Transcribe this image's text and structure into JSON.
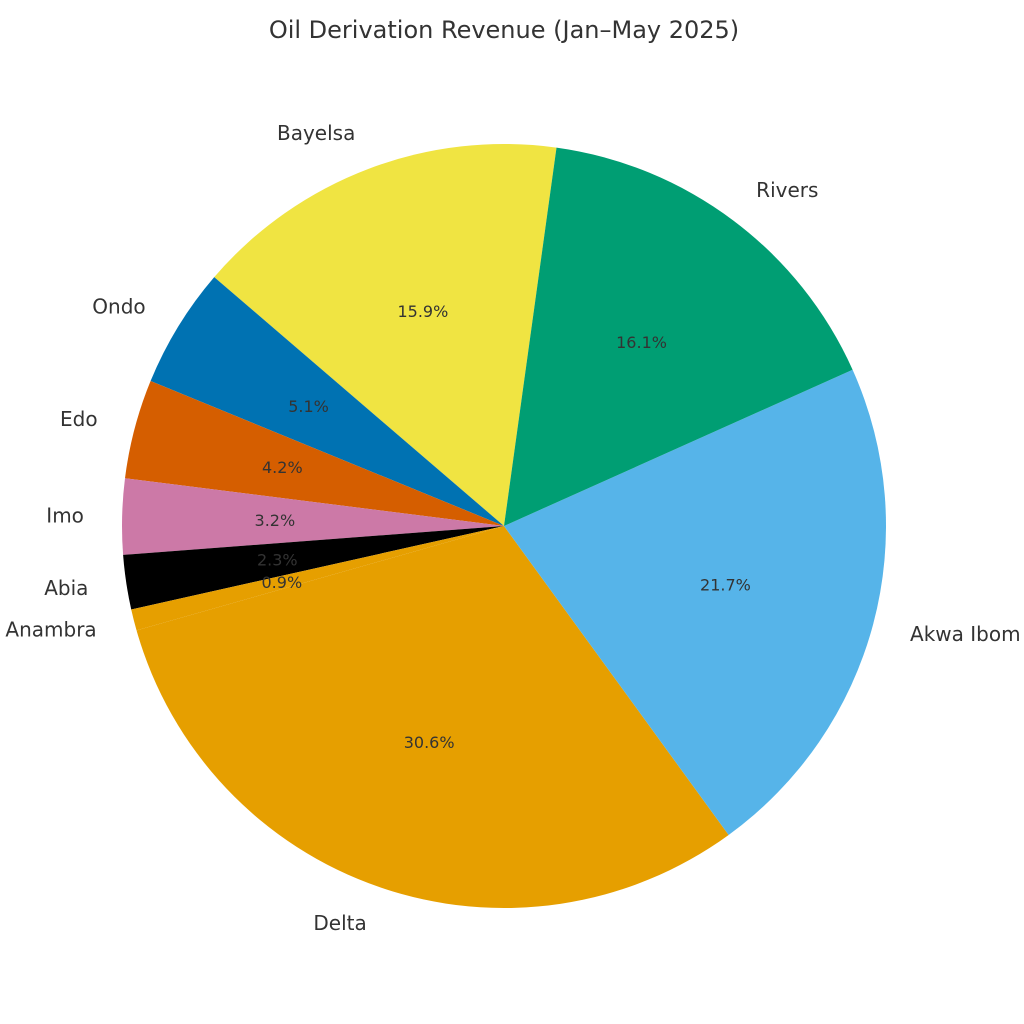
{
  "chart_data": {
    "type": "pie",
    "title": "Oil Derivation Revenue (Jan–May 2025)",
    "slices": [
      {
        "label": "Bayelsa",
        "pct_label": "15.9%",
        "value": 15.9,
        "color": "#F0E442"
      },
      {
        "label": "Ondo",
        "pct_label": "5.1%",
        "value": 5.1,
        "color": "#0072B2"
      },
      {
        "label": "Edo",
        "pct_label": "4.2%",
        "value": 4.2,
        "color": "#D55E00"
      },
      {
        "label": "Imo",
        "pct_label": "3.2%",
        "value": 3.2,
        "color": "#CC79A7"
      },
      {
        "label": "Abia",
        "pct_label": "2.3%",
        "value": 2.3,
        "color": "#000000"
      },
      {
        "label": "Anambra",
        "pct_label": "0.9%",
        "value": 0.9,
        "color": "#E69F00"
      },
      {
        "label": "Delta",
        "pct_label": "30.6%",
        "value": 30.6,
        "color": "#E69F00"
      },
      {
        "label": "Akwa Ibom",
        "pct_label": "21.7%",
        "value": 21.7,
        "color": "#56B4E9"
      },
      {
        "label": "Rivers",
        "pct_label": "16.1%",
        "value": 16.1,
        "color": "#009E73"
      }
    ]
  }
}
